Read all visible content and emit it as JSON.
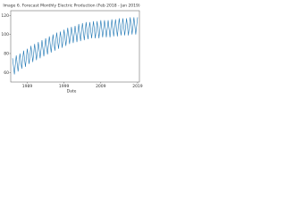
{
  "chart_data": {
    "type": "line",
    "title": "Image 6. Forecast Monthly Electric Production (Feb 2018 - Jan 2019)",
    "xlabel": "Date",
    "x": [
      1985,
      1985.5,
      1986,
      1986.5,
      1987,
      1987.5,
      1988,
      1988.5,
      1989,
      1989.5,
      1990,
      1990.5,
      1991,
      1991.5,
      1992,
      1992.5,
      1993,
      1993.5,
      1994,
      1994.5,
      1995,
      1995.5,
      1996,
      1996.5,
      1997,
      1997.5,
      1998,
      1998.5,
      1999,
      1999.5,
      2000,
      2000.5,
      2001,
      2001.5,
      2002,
      2002.5,
      2003,
      2003.5,
      2004,
      2004.5,
      2005,
      2005.5,
      2006,
      2006.5,
      2007,
      2007.5,
      2008,
      2008.5,
      2009,
      2009.5,
      2010,
      2010.5,
      2011,
      2011.5,
      2012,
      2012.5,
      2013,
      2013.5,
      2014,
      2014.5,
      2015,
      2015.5,
      2016,
      2016.5,
      2017,
      2017.5,
      2018,
      2018.5,
      2019
    ],
    "series": [
      {
        "name": "Electric Production",
        "color": "#1f77b4",
        "values": [
          75,
          58,
          78,
          61,
          80,
          64,
          83,
          66,
          85,
          69,
          88,
          71,
          90,
          73,
          92,
          75,
          94,
          77,
          96,
          79,
          98,
          81,
          100,
          83,
          102,
          85,
          103,
          86,
          105,
          88,
          107,
          90,
          108,
          91,
          109,
          92,
          111,
          93,
          112,
          94,
          113,
          95,
          113,
          96,
          114,
          96,
          114,
          96,
          115,
          97,
          115,
          97,
          115,
          97,
          116,
          98,
          116,
          98,
          117,
          99,
          117,
          99,
          117,
          99,
          118,
          100,
          118,
          100,
          118
        ]
      }
    ],
    "xlim": [
      1984.5,
      2019.5
    ],
    "xticks": [
      1989,
      1999,
      2009,
      2019
    ],
    "ylim": [
      50,
      125
    ],
    "yticks": [
      60,
      80,
      100,
      120
    ]
  }
}
